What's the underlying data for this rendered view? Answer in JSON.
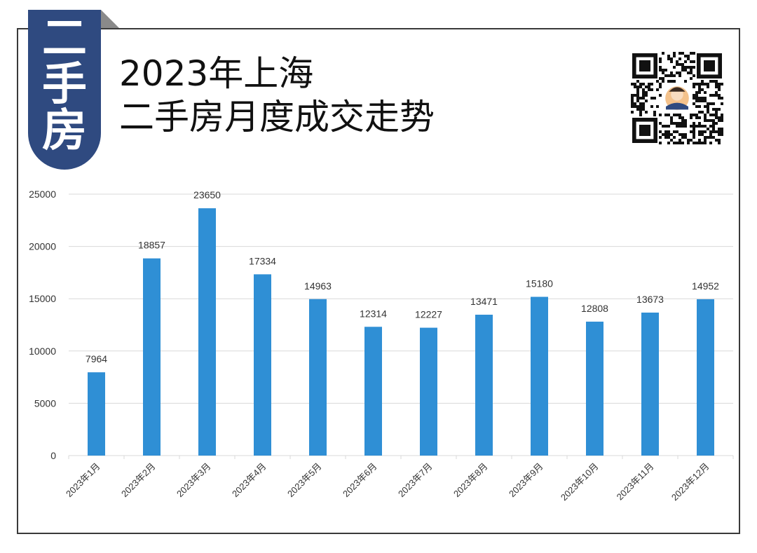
{
  "badge": {
    "chars": [
      "二",
      "手",
      "房"
    ]
  },
  "header": {
    "title_line1": "2023年上海",
    "title_line2": "二手房月度成交走势"
  },
  "qr_icon": "qr-code-icon",
  "colors": {
    "bar": "#2f8fd5",
    "badge": "#2f4a80",
    "grid": "#d9d9d9"
  },
  "chart_data": {
    "type": "bar",
    "title": "",
    "xlabel": "",
    "ylabel": "",
    "categories": [
      "2023年1月",
      "2023年2月",
      "2023年3月",
      "2023年4月",
      "2023年5月",
      "2023年6月",
      "2023年7月",
      "2023年8月",
      "2023年9月",
      "2023年10月",
      "2023年11月",
      "2023年12月"
    ],
    "values": [
      7964,
      18857,
      23650,
      17334,
      14963,
      12314,
      12227,
      13471,
      15180,
      12808,
      13673,
      14952
    ],
    "ylim": [
      0,
      25000
    ],
    "yticks": [
      0,
      5000,
      10000,
      15000,
      20000,
      25000
    ],
    "grid": true,
    "data_labels": true
  }
}
